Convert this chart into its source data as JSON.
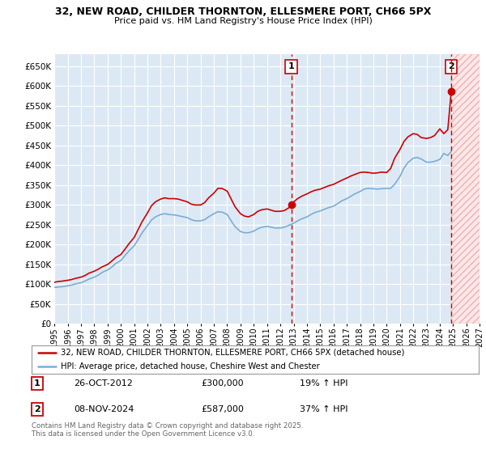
{
  "title1": "32, NEW ROAD, CHILDER THORNTON, ELLESMERE PORT, CH66 5PX",
  "title2": "Price paid vs. HM Land Registry's House Price Index (HPI)",
  "background_color": "#dce9f5",
  "plot_bg": "#dce9f5",
  "grid_color": "#ffffff",
  "red_color": "#cc0000",
  "blue_color": "#7aadd4",
  "legend_label1": "32, NEW ROAD, CHILDER THORNTON, ELLESMERE PORT, CH66 5PX (detached house)",
  "legend_label2": "HPI: Average price, detached house, Cheshire West and Chester",
  "annotation1_date": "26-OCT-2012",
  "annotation1_price": "£300,000",
  "annotation1_hpi": "19% ↑ HPI",
  "annotation2_date": "08-NOV-2024",
  "annotation2_price": "£587,000",
  "annotation2_hpi": "37% ↑ HPI",
  "footer": "Contains HM Land Registry data © Crown copyright and database right 2025.\nThis data is licensed under the Open Government Licence v3.0.",
  "xmin": 1995.0,
  "xmax": 2027.0,
  "ymin": 0,
  "ymax": 680000,
  "yticks": [
    0,
    50000,
    100000,
    150000,
    200000,
    250000,
    300000,
    350000,
    400000,
    450000,
    500000,
    550000,
    600000,
    650000
  ],
  "purchase1_x": 2012.82,
  "purchase1_y": 300000,
  "purchase2_x": 2024.86,
  "purchase2_y": 587000,
  "red_line_x": [
    1995.0,
    1995.3,
    1995.6,
    1996.0,
    1996.3,
    1996.6,
    1997.0,
    1997.3,
    1997.6,
    1998.0,
    1998.3,
    1998.6,
    1999.0,
    1999.3,
    1999.6,
    2000.0,
    2000.3,
    2000.6,
    2001.0,
    2001.3,
    2001.6,
    2002.0,
    2002.3,
    2002.6,
    2003.0,
    2003.3,
    2003.6,
    2004.0,
    2004.3,
    2004.6,
    2005.0,
    2005.3,
    2005.6,
    2006.0,
    2006.3,
    2006.6,
    2007.0,
    2007.3,
    2007.6,
    2008.0,
    2008.3,
    2008.6,
    2009.0,
    2009.3,
    2009.6,
    2010.0,
    2010.3,
    2010.6,
    2011.0,
    2011.3,
    2011.6,
    2012.0,
    2012.3,
    2012.6,
    2012.82,
    2013.0,
    2013.3,
    2013.6,
    2014.0,
    2014.3,
    2014.6,
    2015.0,
    2015.3,
    2015.6,
    2016.0,
    2016.3,
    2016.6,
    2017.0,
    2017.3,
    2017.6,
    2018.0,
    2018.3,
    2018.6,
    2019.0,
    2019.3,
    2019.6,
    2020.0,
    2020.3,
    2020.6,
    2021.0,
    2021.3,
    2021.6,
    2022.0,
    2022.3,
    2022.6,
    2023.0,
    2023.3,
    2023.6,
    2024.0,
    2024.3,
    2024.6,
    2024.86
  ],
  "red_line_y": [
    105000,
    107000,
    108000,
    110000,
    112000,
    115000,
    118000,
    122000,
    128000,
    133000,
    138000,
    144000,
    150000,
    158000,
    167000,
    175000,
    188000,
    202000,
    218000,
    238000,
    258000,
    280000,
    298000,
    308000,
    315000,
    318000,
    316000,
    316000,
    315000,
    312000,
    308000,
    302000,
    300000,
    300000,
    306000,
    318000,
    330000,
    342000,
    342000,
    335000,
    315000,
    295000,
    278000,
    272000,
    270000,
    276000,
    284000,
    288000,
    290000,
    287000,
    284000,
    284000,
    286000,
    292000,
    300000,
    308000,
    316000,
    322000,
    328000,
    333000,
    337000,
    340000,
    344000,
    348000,
    352000,
    357000,
    362000,
    368000,
    373000,
    377000,
    382000,
    383000,
    382000,
    380000,
    381000,
    383000,
    382000,
    392000,
    418000,
    440000,
    460000,
    472000,
    480000,
    478000,
    470000,
    468000,
    470000,
    475000,
    492000,
    480000,
    490000,
    587000
  ],
  "blue_line_x": [
    1995.0,
    1995.3,
    1995.6,
    1996.0,
    1996.3,
    1996.6,
    1997.0,
    1997.3,
    1997.6,
    1998.0,
    1998.3,
    1998.6,
    1999.0,
    1999.3,
    1999.6,
    2000.0,
    2000.3,
    2000.6,
    2001.0,
    2001.3,
    2001.6,
    2002.0,
    2002.3,
    2002.6,
    2003.0,
    2003.3,
    2003.6,
    2004.0,
    2004.3,
    2004.6,
    2005.0,
    2005.3,
    2005.6,
    2006.0,
    2006.3,
    2006.6,
    2007.0,
    2007.3,
    2007.6,
    2008.0,
    2008.3,
    2008.6,
    2009.0,
    2009.3,
    2009.6,
    2010.0,
    2010.3,
    2010.6,
    2011.0,
    2011.3,
    2011.6,
    2012.0,
    2012.3,
    2012.6,
    2013.0,
    2013.3,
    2013.6,
    2014.0,
    2014.3,
    2014.6,
    2015.0,
    2015.3,
    2015.6,
    2016.0,
    2016.3,
    2016.6,
    2017.0,
    2017.3,
    2017.6,
    2018.0,
    2018.3,
    2018.6,
    2019.0,
    2019.3,
    2019.6,
    2020.0,
    2020.3,
    2020.6,
    2021.0,
    2021.3,
    2021.6,
    2022.0,
    2022.3,
    2022.6,
    2023.0,
    2023.3,
    2023.6,
    2024.0,
    2024.3,
    2024.6,
    2024.86
  ],
  "blue_line_y": [
    92000,
    93000,
    94000,
    96000,
    98000,
    101000,
    104000,
    108000,
    113000,
    118000,
    123000,
    130000,
    136000,
    143000,
    152000,
    160000,
    172000,
    184000,
    197000,
    213000,
    230000,
    248000,
    262000,
    270000,
    276000,
    278000,
    276000,
    275000,
    273000,
    271000,
    268000,
    263000,
    260000,
    260000,
    263000,
    270000,
    278000,
    283000,
    282000,
    276000,
    260000,
    245000,
    233000,
    230000,
    230000,
    234000,
    240000,
    244000,
    246000,
    244000,
    242000,
    242000,
    244000,
    248000,
    254000,
    260000,
    265000,
    270000,
    276000,
    281000,
    285000,
    289000,
    293000,
    297000,
    303000,
    310000,
    316000,
    322000,
    328000,
    334000,
    340000,
    342000,
    341000,
    340000,
    341000,
    342000,
    342000,
    352000,
    372000,
    393000,
    407000,
    418000,
    420000,
    416000,
    408000,
    408000,
    410000,
    415000,
    430000,
    425000,
    435000
  ],
  "xticks": [
    1995,
    1996,
    1997,
    1998,
    1999,
    2000,
    2001,
    2002,
    2003,
    2004,
    2005,
    2006,
    2007,
    2008,
    2009,
    2010,
    2011,
    2012,
    2013,
    2014,
    2015,
    2016,
    2017,
    2018,
    2019,
    2020,
    2021,
    2022,
    2023,
    2024,
    2025,
    2026,
    2027
  ]
}
